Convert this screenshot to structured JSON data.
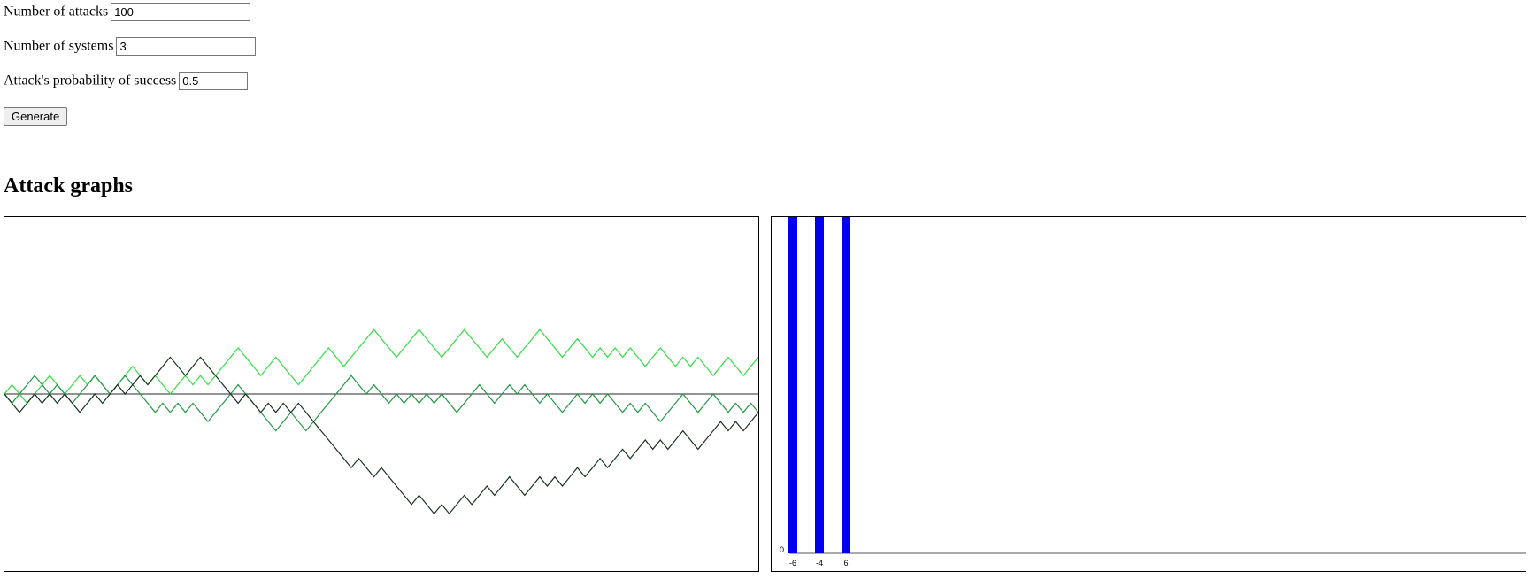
{
  "form": {
    "attacks_label": "Number of attacks",
    "attacks_value": "100",
    "systems_label": "Number of systems",
    "systems_value": "3",
    "prob_label": "Attack's probability of success",
    "prob_value": "0.5",
    "generate_label": "Generate"
  },
  "heading": "Attack graphs",
  "chart_data": [
    {
      "type": "line",
      "title": "",
      "x_range": [
        0,
        100
      ],
      "y_range": [
        -25,
        25
      ],
      "series": [
        {
          "color": "#33dd44",
          "values": [
            0,
            1,
            0,
            -1,
            0,
            1,
            2,
            1,
            0,
            1,
            2,
            1,
            2,
            1,
            0,
            1,
            2,
            3,
            2,
            1,
            2,
            1,
            0,
            1,
            2,
            1,
            2,
            1,
            2,
            3,
            4,
            5,
            4,
            3,
            2,
            3,
            4,
            3,
            2,
            1,
            2,
            3,
            4,
            5,
            4,
            3,
            4,
            5,
            6,
            7,
            6,
            5,
            4,
            5,
            6,
            7,
            6,
            5,
            4,
            5,
            6,
            7,
            6,
            5,
            4,
            5,
            6,
            5,
            4,
            5,
            6,
            7,
            6,
            5,
            4,
            5,
            6,
            5,
            4,
            5,
            4,
            5,
            4,
            5,
            4,
            3,
            4,
            5,
            4,
            3,
            4,
            3,
            4,
            3,
            2,
            3,
            4,
            3,
            2,
            3,
            4
          ]
        },
        {
          "color": "#229944",
          "values": [
            0,
            -1,
            0,
            1,
            2,
            1,
            0,
            1,
            0,
            -1,
            0,
            1,
            2,
            1,
            0,
            1,
            2,
            1,
            0,
            -1,
            -2,
            -1,
            -2,
            -1,
            -2,
            -1,
            -2,
            -3,
            -2,
            -1,
            0,
            1,
            0,
            -1,
            -2,
            -3,
            -4,
            -3,
            -2,
            -3,
            -4,
            -3,
            -2,
            -1,
            0,
            1,
            2,
            1,
            0,
            1,
            0,
            -1,
            0,
            -1,
            0,
            -1,
            0,
            -1,
            0,
            -1,
            -2,
            -1,
            0,
            1,
            0,
            -1,
            0,
            1,
            0,
            1,
            0,
            -1,
            0,
            -1,
            -2,
            -1,
            0,
            -1,
            0,
            -1,
            0,
            -1,
            -2,
            -1,
            -2,
            -1,
            -2,
            -3,
            -2,
            -1,
            0,
            -1,
            -2,
            -1,
            0,
            -1,
            -2,
            -1,
            -2,
            -1,
            -2
          ]
        },
        {
          "color": "#1a3322",
          "values": [
            0,
            -1,
            -2,
            -1,
            0,
            -1,
            0,
            -1,
            0,
            -1,
            -2,
            -1,
            0,
            -1,
            0,
            1,
            0,
            1,
            2,
            1,
            2,
            3,
            4,
            3,
            2,
            3,
            4,
            3,
            2,
            1,
            0,
            -1,
            0,
            -1,
            -2,
            -1,
            -2,
            -1,
            -2,
            -1,
            -2,
            -3,
            -4,
            -5,
            -6,
            -7,
            -8,
            -7,
            -8,
            -9,
            -8,
            -9,
            -10,
            -11,
            -12,
            -11,
            -12,
            -13,
            -12,
            -13,
            -12,
            -11,
            -12,
            -11,
            -10,
            -11,
            -10,
            -9,
            -10,
            -11,
            -10,
            -9,
            -10,
            -9,
            -10,
            -9,
            -8,
            -9,
            -8,
            -7,
            -8,
            -7,
            -6,
            -7,
            -6,
            -5,
            -6,
            -5,
            -6,
            -5,
            -4,
            -5,
            -6,
            -5,
            -4,
            -3,
            -4,
            -3,
            -4,
            -3,
            -2
          ]
        }
      ]
    },
    {
      "type": "bar",
      "title": "",
      "categories": [
        "-6",
        "-4",
        "6"
      ],
      "values": [
        1,
        1,
        1
      ],
      "y_axis_label": "0",
      "bar_color": "#0000ee"
    }
  ]
}
